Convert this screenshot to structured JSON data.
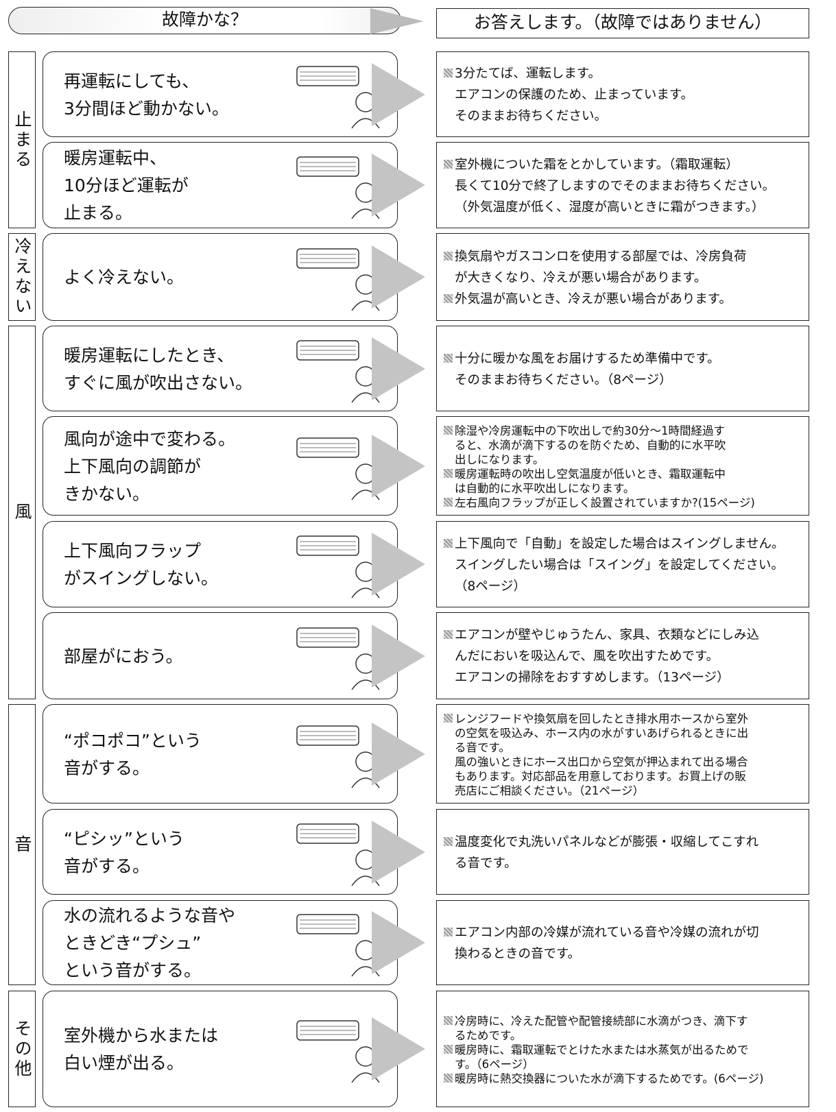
{
  "header": {
    "question": "故障かな？",
    "answer": "お答えします。（故障ではありません）"
  },
  "sections": [
    {
      "label": "止まる",
      "rows": [
        {
          "problem": [
            "再運転にしても、",
            "3分間ほど動かない。"
          ],
          "answer": [
            [
              "3分たてば、運転します。",
              "エアコンの保護のため、止まっています。",
              "そのままお待ちください。"
            ]
          ]
        },
        {
          "problem": [
            "暖房運転中、",
            "10分ほど運転が",
            "止まる。"
          ],
          "answer": [
            [
              "室外機についた霜をとかしています。（霜取運転）",
              "長くて10分で終了しますのでそのままお待ちください。",
              "（外気温度が低く、湿度が高いときに霜がつきます。）"
            ]
          ]
        }
      ]
    },
    {
      "label": "冷えない",
      "rows": [
        {
          "problem": [
            "よく冷えない。"
          ],
          "answer": [
            [
              "換気扇やガスコンロを使用する部屋では、冷房負荷",
              "が大きくなり、冷えが悪い場合があります。"
            ],
            [
              "外気温が高いとき、冷えが悪い場合があります。"
            ]
          ]
        }
      ]
    },
    {
      "label": "風",
      "rows": [
        {
          "problem": [
            "暖房運転にしたとき、",
            "すぐに風が吹出さない。"
          ],
          "answer": [
            [
              "十分に暖かな風をお届けするため準備中です。",
              "そのままお待ちください。（8ページ）"
            ]
          ]
        },
        {
          "problem": [
            "風向が途中で変わる。",
            "上下風向の調節が",
            "きかない。"
          ],
          "answer": [
            [
              "除湿や冷房運転中の下吹出しで約30分～1時間経過す",
              "ると、水滴が滴下するのを防ぐため、自動的に水平吹",
              "出しになります。"
            ],
            [
              "暖房運転時の吹出し空気温度が低いとき、霜取運転中",
              "は自動的に水平吹出しになります。"
            ],
            [
              "左右風向フラップが正しく設置されていますか?(15ページ)"
            ]
          ]
        },
        {
          "problem": [
            "上下風向フラップ",
            "がスイングしない。"
          ],
          "answer": [
            [
              "上下風向で「自動」を設定した場合はスイングしません。",
              "スイングしたい場合は「スイング」を設定してください。",
              "（8ページ）"
            ]
          ]
        },
        {
          "problem": [
            "部屋がにおう。"
          ],
          "answer": [
            [
              "エアコンが壁やじゅうたん、家具、衣類などにしみ込",
              "んだにおいを吸込んで、風を吹出すためです。",
              "エアコンの掃除をおすすめします。（13ページ）"
            ]
          ]
        }
      ]
    },
    {
      "label": "音",
      "rows": [
        {
          "problem": [
            "“ポコポコ”という",
            "音がする。"
          ],
          "answer": [
            [
              "レンジフードや換気扇を回したとき排水用ホースから室外",
              "の空気を吸込み、ホース内の水がすいあげられるときに出",
              "る音です。",
              "風の強いときにホース出口から空気が押込まれて出る場合",
              "もあります。対応部品を用意しております。お買上げの販",
              "売店にご相談ください。（21ページ）"
            ]
          ]
        },
        {
          "problem": [
            "“ピシッ”という",
            "音がする。"
          ],
          "answer": [
            [
              "温度変化で丸洗いパネルなどが膨張・収縮してこすれ",
              "る音です。"
            ]
          ]
        },
        {
          "problem": [
            "水の流れるような音や",
            "ときどき“プシュ”",
            "という音がする。"
          ],
          "answer": [
            [
              "エアコン内部の冷媒が流れている音や冷媒の流れが切",
              "換わるときの音です。"
            ]
          ]
        }
      ]
    },
    {
      "label": "その他",
      "rows": [
        {
          "problem": [
            "室外機から水または",
            "白い煙が出る。"
          ],
          "answer": [
            [
              "冷房時に、冷えた配管や配管接続部に水滴がつき、滴下す",
              "るためです。"
            ],
            [
              "暖房時に、霜取運転でとけた水または水蒸気が出るためで",
              "す。（6ページ）"
            ],
            [
              "暖房時に熱交換器についた水が滴下するためです。(6ページ)"
            ]
          ]
        }
      ]
    }
  ]
}
